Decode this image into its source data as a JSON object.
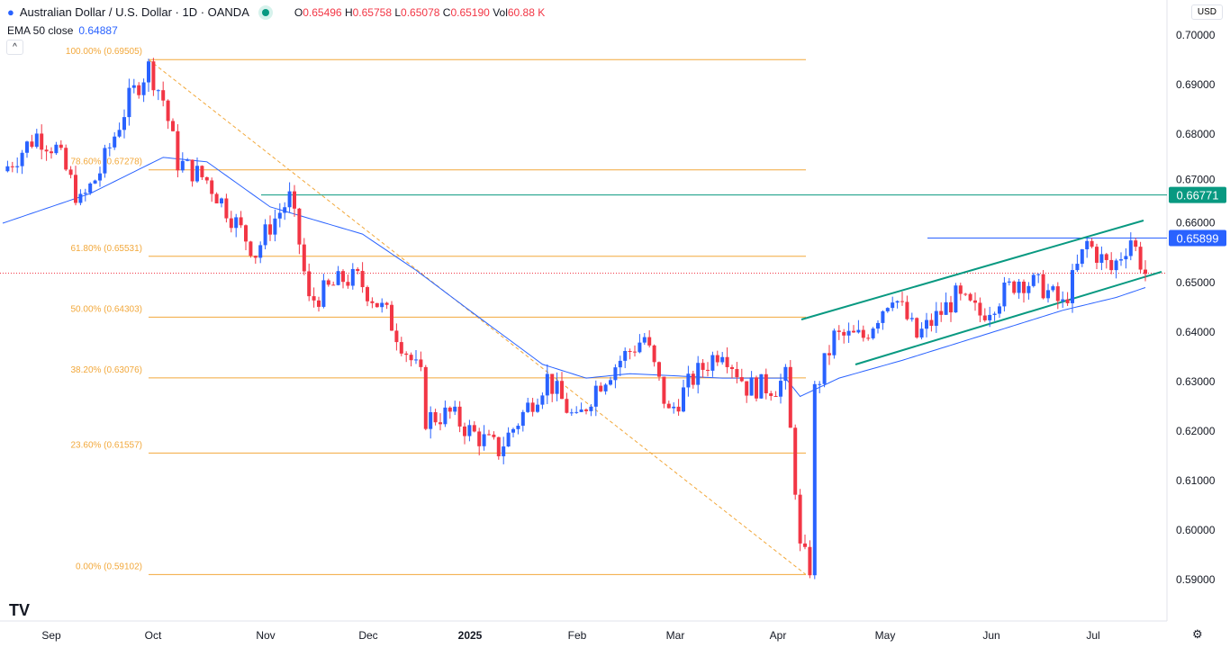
{
  "header": {
    "symbol": "Australian Dollar / U.S. Dollar · 1D · OANDA",
    "o_label": "O",
    "o": "0.65496",
    "h_label": "H",
    "h": "0.65758",
    "l_label": "L",
    "l": "0.65078",
    "c_label": "C",
    "c": "0.65190",
    "vol_label": "Vol",
    "vol": "60.88 K",
    "ema_label": "EMA 50 close",
    "ema_value": "0.64887",
    "currency": "USD",
    "collapse": "^"
  },
  "colors": {
    "up": "#2962ff",
    "down": "#f23645",
    "ema": "#2962ff",
    "fib": "#f2a83b",
    "level": "#089981",
    "channel": "#089981"
  },
  "chart_data": {
    "type": "candlestick",
    "ylim": [
      0.585,
      0.705
    ],
    "y_ticks": [
      "0.70000",
      "0.69000",
      "0.68000",
      "0.67000",
      "0.66000",
      "0.65000",
      "0.64000",
      "0.63000",
      "0.62000",
      "0.61000",
      "0.60000",
      "0.59000"
    ],
    "x_ticks": [
      "Sep",
      "Oct",
      "Nov",
      "Dec",
      "2025",
      "Feb",
      "Mar",
      "Apr",
      "May",
      "Jun",
      "Jul"
    ],
    "price_path_waypoints": [
      [
        0,
        0.6725
      ],
      [
        7,
        0.6798
      ],
      [
        11,
        0.677
      ],
      [
        16,
        0.666
      ],
      [
        20,
        0.6725
      ],
      [
        26,
        0.687
      ],
      [
        30,
        0.6935
      ],
      [
        33,
        0.687
      ],
      [
        36,
        0.6744
      ],
      [
        42,
        0.6707
      ],
      [
        47,
        0.6635
      ],
      [
        52,
        0.656
      ],
      [
        55,
        0.6616
      ],
      [
        59,
        0.667
      ],
      [
        61,
        0.658
      ],
      [
        63,
        0.646
      ],
      [
        70,
        0.6507
      ],
      [
        73,
        0.6507
      ],
      [
        79,
        0.6435
      ],
      [
        83,
        0.6362
      ],
      [
        86,
        0.6307
      ],
      [
        87,
        0.6225
      ],
      [
        92,
        0.6235
      ],
      [
        96,
        0.62
      ],
      [
        102,
        0.6162
      ],
      [
        107,
        0.6235
      ],
      [
        112,
        0.6307
      ],
      [
        118,
        0.6216
      ],
      [
        122,
        0.629
      ],
      [
        127,
        0.6344
      ],
      [
        132,
        0.639
      ],
      [
        137,
        0.6235
      ],
      [
        142,
        0.6307
      ],
      [
        148,
        0.637
      ],
      [
        153,
        0.629
      ],
      [
        159,
        0.629
      ],
      [
        161,
        0.6307
      ],
      [
        163,
        0.609
      ],
      [
        164,
        0.596
      ],
      [
        166,
        0.5925
      ],
      [
        167,
        0.628
      ],
      [
        171,
        0.639
      ],
      [
        177,
        0.639
      ],
      [
        183,
        0.648
      ],
      [
        188,
        0.639
      ],
      [
        196,
        0.647
      ],
      [
        201,
        0.6435
      ],
      [
        209,
        0.6507
      ],
      [
        214,
        0.649
      ],
      [
        218,
        0.6453
      ],
      [
        223,
        0.658
      ],
      [
        228,
        0.6525
      ],
      [
        232,
        0.659
      ],
      [
        235,
        0.6519
      ]
    ],
    "ema50_waypoints": [
      [
        0,
        0.662
      ],
      [
        18,
        0.668
      ],
      [
        33,
        0.6753
      ],
      [
        42,
        0.6744
      ],
      [
        55,
        0.6653
      ],
      [
        74,
        0.6598
      ],
      [
        85,
        0.6525
      ],
      [
        96,
        0.6444
      ],
      [
        111,
        0.6335
      ],
      [
        120,
        0.6307
      ],
      [
        129,
        0.6316
      ],
      [
        148,
        0.6307
      ],
      [
        161,
        0.6307
      ],
      [
        164,
        0.627
      ],
      [
        172,
        0.6307
      ],
      [
        185,
        0.6343
      ],
      [
        203,
        0.6398
      ],
      [
        218,
        0.6444
      ],
      [
        229,
        0.647
      ],
      [
        235,
        0.649
      ]
    ],
    "fibonacci": [
      {
        "label": "100.00% (0.69505)",
        "price": 0.69505
      },
      {
        "label": "78.60% (0.67278)",
        "price": 0.67278
      },
      {
        "label": "61.80% (0.65531)",
        "price": 0.65531
      },
      {
        "label": "50.00% (0.64303)",
        "price": 0.64303
      },
      {
        "label": "38.20% (0.63076)",
        "price": 0.63076
      },
      {
        "label": "23.60% (0.61557)",
        "price": 0.61557
      },
      {
        "label": "0.00% (0.59102)",
        "price": 0.59102
      }
    ],
    "levels": [
      {
        "label": "0.66771",
        "price": 0.66771,
        "color": "#089981"
      },
      {
        "label": "0.65899",
        "price": 0.65899,
        "color": "#2962ff"
      }
    ],
    "last_price": 0.6519
  },
  "footer": {
    "logo": "TV",
    "settings": "⚙"
  }
}
